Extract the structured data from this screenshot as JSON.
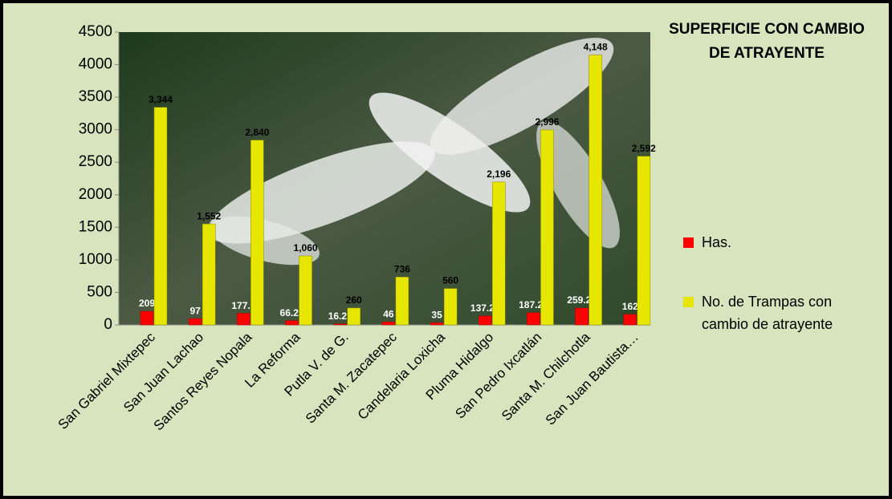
{
  "chart_data": {
    "type": "bar",
    "title": "SUPERFICIE CON CAMBIO DE ATRAYENTE",
    "categories": [
      "San Gabriel Mixtepec",
      "San Juan Lachao",
      "Santos Reyes Nopala",
      "La Reforma",
      "Putla V. de G.",
      "Santa M. Zacatepec",
      "Candelaria Loxicha",
      "Pluma Hidalgo",
      "San Pedro Ixcatlán",
      "Santa M. Chilchotla",
      "San Juan Bautista…"
    ],
    "series": [
      {
        "name": "Has.",
        "color": "#ff0000",
        "values": [
          209,
          97,
          177.5,
          66.25,
          16.25,
          46,
          35,
          137.25,
          187.25,
          259.25,
          162
        ]
      },
      {
        "name": "No. de Trampas con cambio de atrayente",
        "color": "#e6e600",
        "values": [
          3344,
          1552,
          2840,
          1060,
          260,
          736,
          560,
          2196,
          2996,
          4148,
          2592
        ],
        "value_labels": [
          "3,344",
          "1,552",
          "2,840",
          "1,060",
          "260",
          "736",
          "560",
          "2,196",
          "2,996",
          "4,148",
          "2,592"
        ]
      }
    ],
    "ylim": [
      0,
      4500
    ],
    "yticks": [
      0,
      500,
      1000,
      1500,
      2000,
      2500,
      3000,
      3500,
      4000,
      4500
    ],
    "legend": "right"
  }
}
